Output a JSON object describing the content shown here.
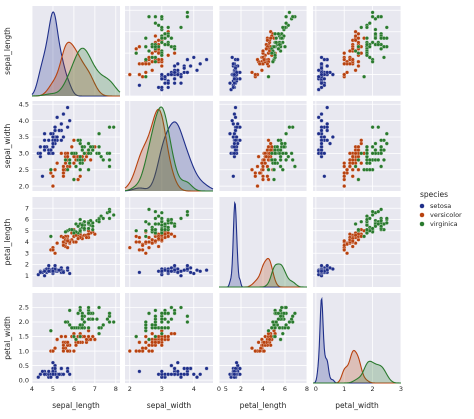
{
  "chart_data": {
    "type": "scatter",
    "kind": "pairplot",
    "variables": [
      "sepal_length",
      "sepal_width",
      "petal_length",
      "petal_width"
    ],
    "hue": "species",
    "legend": {
      "title": "species",
      "placement": "right",
      "entries": [
        "setosa",
        "versicolor",
        "virginica"
      ]
    },
    "colors": {
      "setosa": "#1f2f8a",
      "versicolor": "#b8420f",
      "virginica": "#2a7a2e"
    },
    "grid": true,
    "panel_background": "#e8e8f0",
    "diag_kind": "kde",
    "axes": {
      "sepal_length": {
        "lim": [
          4.0,
          8.2
        ],
        "ticks": [
          4,
          5,
          6,
          7,
          8
        ]
      },
      "sepal_width": {
        "lim": [
          1.85,
          4.6
        ],
        "ticks": [
          2,
          3,
          4,
          5
        ],
        "yticks": [
          "2.0",
          "2.5",
          "3.0",
          "3.5",
          "4.0",
          "4.5"
        ]
      },
      "petal_length": {
        "lim": [
          0,
          8
        ],
        "ticks": [
          0,
          2,
          4,
          6,
          8
        ],
        "yticks": [
          1,
          2,
          3,
          4,
          5,
          6,
          7
        ]
      },
      "petal_width": {
        "lim": [
          -0.1,
          3.0
        ],
        "ticks": [
          0,
          1,
          2,
          3
        ],
        "yticks": [
          "0.0",
          "0.5",
          "1.0",
          "1.5",
          "2.0",
          "2.5"
        ]
      }
    },
    "series": [
      {
        "name": "setosa",
        "points": [
          [
            5.1,
            3.5,
            1.4,
            0.2
          ],
          [
            4.9,
            3.0,
            1.4,
            0.2
          ],
          [
            4.7,
            3.2,
            1.3,
            0.2
          ],
          [
            4.6,
            3.1,
            1.5,
            0.2
          ],
          [
            5.0,
            3.6,
            1.4,
            0.2
          ],
          [
            5.4,
            3.9,
            1.7,
            0.4
          ],
          [
            4.6,
            3.4,
            1.4,
            0.3
          ],
          [
            5.0,
            3.4,
            1.5,
            0.2
          ],
          [
            4.4,
            2.9,
            1.4,
            0.2
          ],
          [
            4.9,
            3.1,
            1.5,
            0.1
          ],
          [
            5.4,
            3.7,
            1.5,
            0.2
          ],
          [
            4.8,
            3.4,
            1.6,
            0.2
          ],
          [
            4.8,
            3.0,
            1.4,
            0.1
          ],
          [
            4.3,
            3.0,
            1.1,
            0.1
          ],
          [
            5.8,
            4.0,
            1.2,
            0.2
          ],
          [
            5.7,
            4.4,
            1.5,
            0.4
          ],
          [
            5.4,
            3.9,
            1.3,
            0.4
          ],
          [
            5.1,
            3.5,
            1.4,
            0.3
          ],
          [
            5.7,
            3.8,
            1.7,
            0.3
          ],
          [
            5.1,
            3.8,
            1.5,
            0.3
          ],
          [
            5.4,
            3.4,
            1.7,
            0.2
          ],
          [
            5.1,
            3.7,
            1.5,
            0.4
          ],
          [
            4.6,
            3.6,
            1.0,
            0.2
          ],
          [
            5.1,
            3.3,
            1.7,
            0.5
          ],
          [
            4.8,
            3.4,
            1.9,
            0.2
          ],
          [
            5.0,
            3.0,
            1.6,
            0.2
          ],
          [
            5.0,
            3.4,
            1.6,
            0.4
          ],
          [
            5.2,
            3.5,
            1.5,
            0.2
          ],
          [
            5.2,
            3.4,
            1.4,
            0.2
          ],
          [
            4.7,
            3.2,
            1.6,
            0.2
          ],
          [
            4.8,
            3.1,
            1.6,
            0.2
          ],
          [
            5.4,
            3.4,
            1.5,
            0.4
          ],
          [
            5.2,
            4.1,
            1.5,
            0.1
          ],
          [
            5.5,
            4.2,
            1.4,
            0.2
          ],
          [
            4.9,
            3.1,
            1.5,
            0.2
          ],
          [
            5.0,
            3.2,
            1.2,
            0.2
          ],
          [
            5.5,
            3.5,
            1.3,
            0.2
          ],
          [
            4.9,
            3.6,
            1.4,
            0.1
          ],
          [
            4.4,
            3.0,
            1.3,
            0.2
          ],
          [
            5.1,
            3.4,
            1.5,
            0.2
          ],
          [
            5.0,
            3.5,
            1.3,
            0.3
          ],
          [
            4.5,
            2.3,
            1.3,
            0.3
          ],
          [
            4.4,
            3.2,
            1.3,
            0.2
          ],
          [
            5.0,
            3.5,
            1.6,
            0.6
          ],
          [
            5.1,
            3.8,
            1.9,
            0.4
          ],
          [
            4.8,
            3.0,
            1.4,
            0.3
          ],
          [
            5.1,
            3.8,
            1.6,
            0.2
          ],
          [
            4.6,
            3.2,
            1.4,
            0.2
          ],
          [
            5.3,
            3.7,
            1.5,
            0.2
          ],
          [
            5.0,
            3.3,
            1.4,
            0.2
          ]
        ]
      },
      {
        "name": "versicolor",
        "points": [
          [
            7.0,
            3.2,
            4.7,
            1.4
          ],
          [
            6.4,
            3.2,
            4.5,
            1.5
          ],
          [
            6.9,
            3.1,
            4.9,
            1.5
          ],
          [
            5.5,
            2.3,
            4.0,
            1.3
          ],
          [
            6.5,
            2.8,
            4.6,
            1.5
          ],
          [
            5.7,
            2.8,
            4.5,
            1.3
          ],
          [
            6.3,
            3.3,
            4.7,
            1.6
          ],
          [
            4.9,
            2.4,
            3.3,
            1.0
          ],
          [
            6.6,
            2.9,
            4.6,
            1.3
          ],
          [
            5.2,
            2.7,
            3.9,
            1.4
          ],
          [
            5.0,
            2.0,
            3.5,
            1.0
          ],
          [
            5.9,
            3.0,
            4.2,
            1.5
          ],
          [
            6.0,
            2.2,
            4.0,
            1.0
          ],
          [
            6.1,
            2.9,
            4.7,
            1.4
          ],
          [
            5.6,
            2.9,
            3.6,
            1.3
          ],
          [
            6.7,
            3.1,
            4.4,
            1.4
          ],
          [
            5.6,
            3.0,
            4.5,
            1.5
          ],
          [
            5.8,
            2.7,
            4.1,
            1.0
          ],
          [
            6.2,
            2.2,
            4.5,
            1.5
          ],
          [
            5.6,
            2.5,
            3.9,
            1.1
          ],
          [
            5.9,
            3.2,
            4.8,
            1.8
          ],
          [
            6.1,
            2.8,
            4.0,
            1.3
          ],
          [
            6.3,
            2.5,
            4.9,
            1.5
          ],
          [
            6.1,
            2.8,
            4.7,
            1.2
          ],
          [
            6.4,
            2.9,
            4.3,
            1.3
          ],
          [
            6.6,
            3.0,
            4.4,
            1.4
          ],
          [
            6.8,
            2.8,
            4.8,
            1.4
          ],
          [
            6.7,
            3.0,
            5.0,
            1.7
          ],
          [
            6.0,
            2.9,
            4.5,
            1.5
          ],
          [
            5.7,
            2.6,
            3.5,
            1.0
          ],
          [
            5.5,
            2.4,
            3.8,
            1.1
          ],
          [
            5.5,
            2.4,
            3.7,
            1.0
          ],
          [
            5.8,
            2.7,
            3.9,
            1.2
          ],
          [
            6.0,
            2.7,
            5.1,
            1.6
          ],
          [
            5.4,
            3.0,
            4.5,
            1.5
          ],
          [
            6.0,
            3.4,
            4.5,
            1.6
          ],
          [
            6.7,
            3.1,
            4.7,
            1.5
          ],
          [
            6.3,
            2.3,
            4.4,
            1.3
          ],
          [
            5.6,
            3.0,
            4.1,
            1.3
          ],
          [
            5.5,
            2.5,
            4.0,
            1.3
          ],
          [
            5.5,
            2.6,
            4.4,
            1.2
          ],
          [
            6.1,
            3.0,
            4.6,
            1.4
          ],
          [
            5.8,
            2.6,
            4.0,
            1.2
          ],
          [
            5.0,
            2.3,
            3.3,
            1.0
          ],
          [
            5.6,
            2.7,
            4.2,
            1.3
          ],
          [
            5.7,
            3.0,
            4.2,
            1.2
          ],
          [
            5.7,
            2.9,
            4.2,
            1.3
          ],
          [
            6.2,
            2.9,
            4.3,
            1.3
          ],
          [
            5.1,
            2.5,
            3.0,
            1.1
          ],
          [
            5.7,
            2.8,
            4.1,
            1.3
          ]
        ]
      },
      {
        "name": "virginica",
        "points": [
          [
            6.3,
            3.3,
            6.0,
            2.5
          ],
          [
            5.8,
            2.7,
            5.1,
            1.9
          ],
          [
            7.1,
            3.0,
            5.9,
            2.1
          ],
          [
            6.3,
            2.9,
            5.6,
            1.8
          ],
          [
            6.5,
            3.0,
            5.8,
            2.2
          ],
          [
            7.6,
            3.0,
            6.6,
            2.1
          ],
          [
            4.9,
            2.5,
            4.5,
            1.7
          ],
          [
            7.3,
            2.9,
            6.3,
            1.8
          ],
          [
            6.7,
            2.5,
            5.8,
            1.8
          ],
          [
            7.2,
            3.6,
            6.1,
            2.5
          ],
          [
            6.5,
            3.2,
            5.1,
            2.0
          ],
          [
            6.4,
            2.7,
            5.3,
            1.9
          ],
          [
            6.8,
            3.0,
            5.5,
            2.1
          ],
          [
            5.7,
            2.5,
            5.0,
            2.0
          ],
          [
            5.8,
            2.8,
            5.1,
            2.4
          ],
          [
            6.4,
            3.2,
            5.3,
            2.3
          ],
          [
            6.5,
            3.0,
            5.5,
            1.8
          ],
          [
            7.7,
            3.8,
            6.7,
            2.2
          ],
          [
            7.7,
            2.6,
            6.9,
            2.3
          ],
          [
            6.0,
            2.2,
            5.0,
            1.5
          ],
          [
            6.9,
            3.2,
            5.7,
            2.3
          ],
          [
            5.6,
            2.8,
            4.9,
            2.0
          ],
          [
            7.7,
            2.8,
            6.7,
            2.0
          ],
          [
            6.3,
            2.7,
            4.9,
            1.8
          ],
          [
            6.7,
            3.3,
            5.7,
            2.1
          ],
          [
            7.2,
            3.2,
            6.0,
            1.8
          ],
          [
            6.2,
            2.8,
            4.8,
            1.8
          ],
          [
            6.1,
            3.0,
            4.9,
            1.8
          ],
          [
            6.4,
            2.8,
            5.6,
            2.1
          ],
          [
            7.2,
            3.0,
            5.8,
            1.6
          ],
          [
            7.4,
            2.8,
            6.1,
            1.9
          ],
          [
            7.9,
            3.8,
            6.4,
            2.0
          ],
          [
            6.4,
            2.8,
            5.6,
            2.2
          ],
          [
            6.3,
            2.8,
            5.1,
            1.5
          ],
          [
            6.1,
            2.6,
            5.6,
            1.4
          ],
          [
            7.7,
            3.0,
            6.1,
            2.3
          ],
          [
            6.3,
            3.4,
            5.6,
            2.4
          ],
          [
            6.4,
            3.1,
            5.5,
            1.8
          ],
          [
            6.0,
            3.0,
            4.8,
            1.8
          ],
          [
            6.9,
            3.1,
            5.4,
            2.1
          ],
          [
            6.7,
            3.1,
            5.6,
            2.4
          ],
          [
            6.9,
            3.1,
            5.1,
            2.3
          ],
          [
            5.8,
            2.7,
            5.1,
            1.9
          ],
          [
            6.8,
            3.2,
            5.9,
            2.3
          ],
          [
            6.7,
            3.3,
            5.7,
            2.5
          ],
          [
            6.7,
            3.0,
            5.2,
            2.3
          ],
          [
            6.3,
            2.5,
            5.0,
            1.9
          ],
          [
            6.5,
            3.0,
            5.2,
            2.0
          ],
          [
            6.2,
            3.4,
            5.4,
            2.3
          ],
          [
            5.9,
            3.0,
            5.1,
            1.8
          ]
        ]
      }
    ]
  }
}
